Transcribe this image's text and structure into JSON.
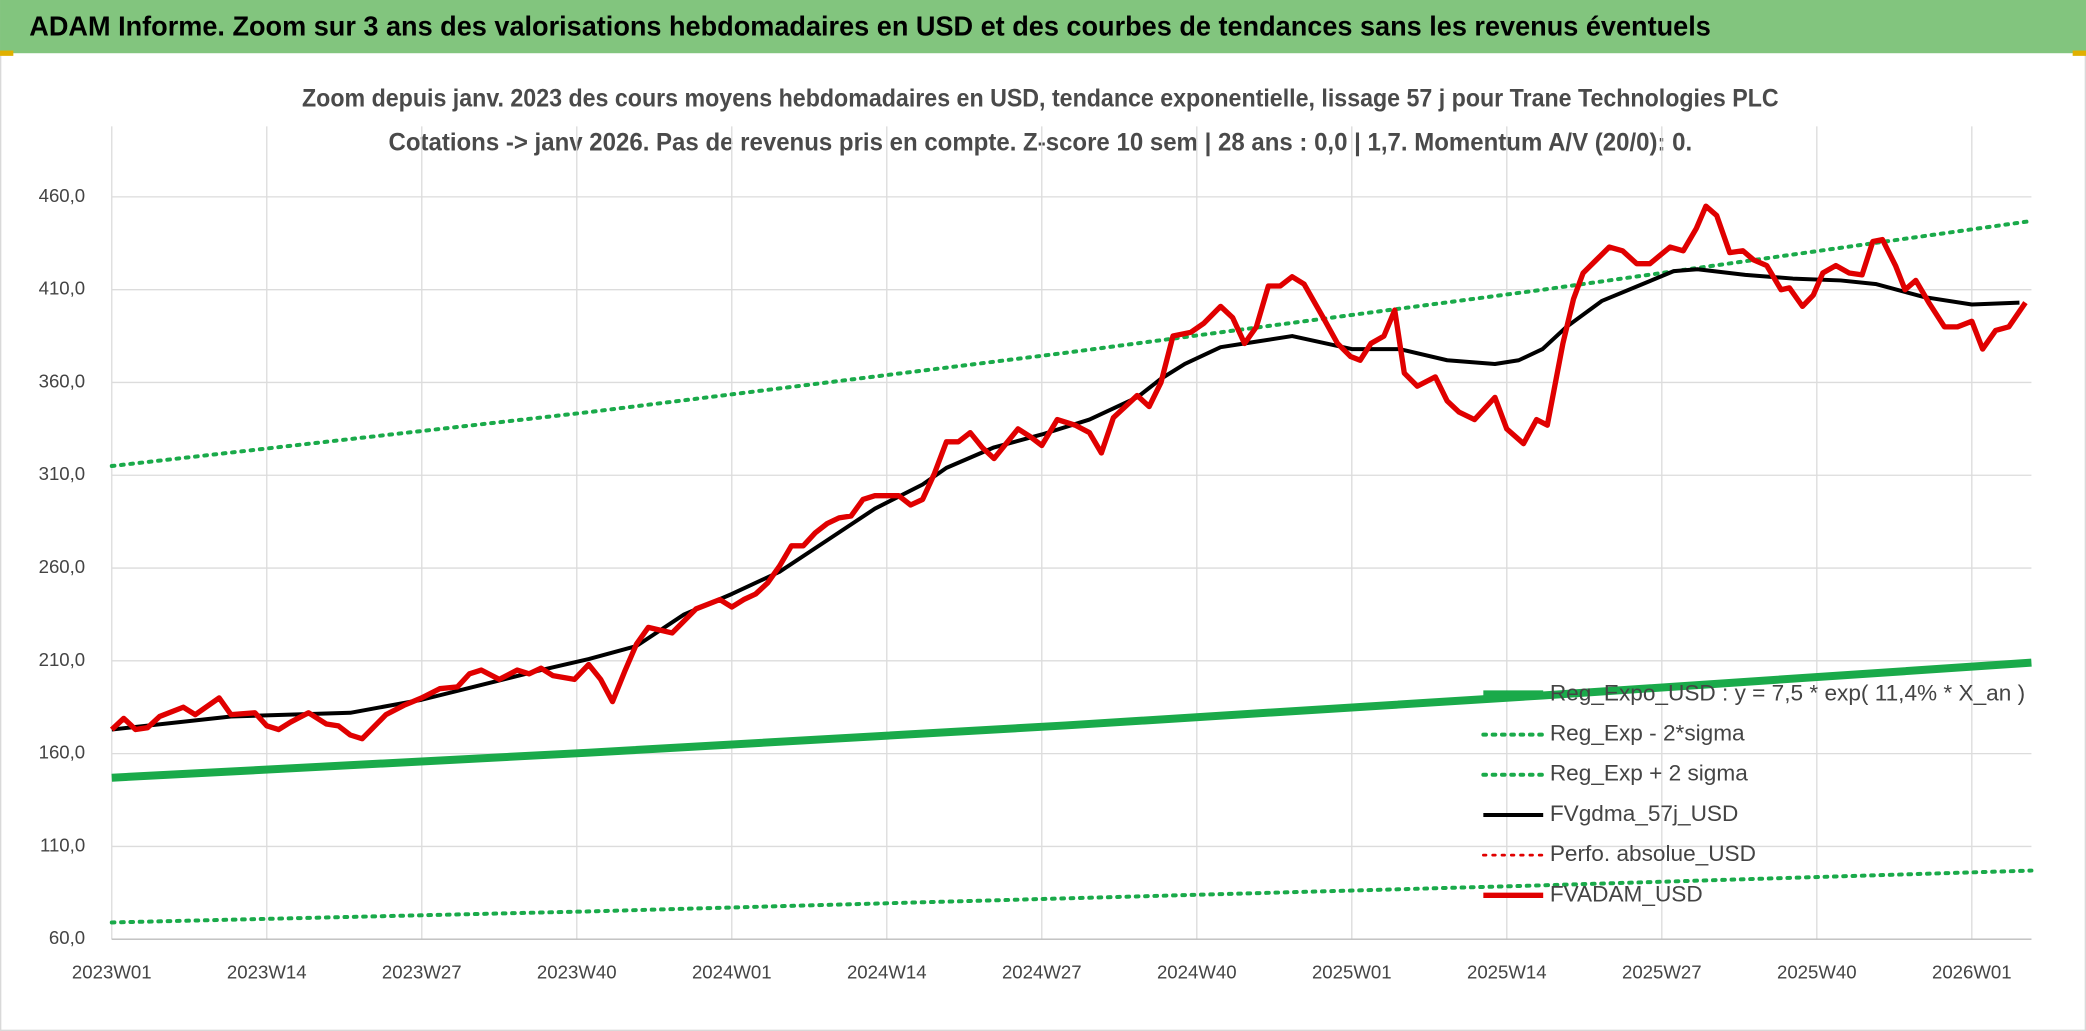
{
  "header": "ADAM Informe. Zoom sur 3 ans des valorisations hebdomadaires en USD et des courbes de tendances sans les revenus éventuels",
  "chart_data": {
    "type": "line",
    "title": "Zoom depuis janv. 2023 des cours moyens hebdomadaires en USD, tendance exponentielle, lissage 57 j pour Trane Technologies PLC",
    "subtitle": "Cotations -> janv 2026. Pas de revenus pris en compte. Z-score 10 sem | 28 ans : 0,0 | 1,7. Momentum A/V (20/0): 0.",
    "xlim": [
      0,
      161
    ],
    "xticks": [
      {
        "value": 0,
        "label": "2023W01"
      },
      {
        "value": 13,
        "label": "2023W14"
      },
      {
        "value": 26,
        "label": "2023W27"
      },
      {
        "value": 39,
        "label": "2023W40"
      },
      {
        "value": 52,
        "label": "2024W01"
      },
      {
        "value": 65,
        "label": "2024W14"
      },
      {
        "value": 78,
        "label": "2024W27"
      },
      {
        "value": 91,
        "label": "2024W40"
      },
      {
        "value": 104,
        "label": "2025W01"
      },
      {
        "value": 117,
        "label": "2025W14"
      },
      {
        "value": 130,
        "label": "2025W27"
      },
      {
        "value": 143,
        "label": "2025W40"
      },
      {
        "value": 156,
        "label": "2026W01"
      }
    ],
    "ylim": [
      60,
      460
    ],
    "yticks": [
      {
        "value": 60,
        "label": "60,0"
      },
      {
        "value": 110,
        "label": "110,0"
      },
      {
        "value": 160,
        "label": "160,0"
      },
      {
        "value": 210,
        "label": "210,0"
      },
      {
        "value": 260,
        "label": "260,0"
      },
      {
        "value": 310,
        "label": "310,0"
      },
      {
        "value": 360,
        "label": "360,0"
      },
      {
        "value": 410,
        "label": "410,0"
      },
      {
        "value": 460,
        "label": "460,0"
      }
    ],
    "grid": true,
    "legend": "lower right",
    "series": [
      {
        "name": "Reg_Expo_USD : y = 7,5 * exp( 11,4% *  X_an )",
        "color": "#1aaa4a",
        "line_style": "solid",
        "line_width": 6,
        "x": [
          0,
          40,
          80,
          120,
          161
        ],
        "values": [
          147,
          160.5,
          175.2,
          191.3,
          209
        ]
      },
      {
        "name": "Reg_Exp - 2*sigma",
        "color": "#1aaa4a",
        "line_style": "dotted",
        "line_width": 3,
        "x": [
          0,
          40,
          80,
          120,
          161
        ],
        "values": [
          69,
          75,
          82,
          89,
          97
        ]
      },
      {
        "name": "Reg_Exp + 2 sigma",
        "color": "#1aaa4a",
        "line_style": "dotted",
        "line_width": 3,
        "x": [
          0,
          40,
          80,
          120,
          161
        ],
        "values": [
          315,
          344,
          376,
          410,
          447
        ]
      },
      {
        "name": "FVgdma_57j_USD",
        "color": "#000000",
        "line_style": "solid",
        "line_width": 3,
        "x": [
          0,
          10,
          20,
          26,
          31,
          36,
          40,
          44,
          48,
          52,
          56,
          60,
          64,
          68,
          70,
          74,
          78,
          82,
          86,
          88,
          90,
          93,
          96,
          99,
          104,
          108,
          112,
          116,
          118,
          120,
          122,
          125,
          128,
          131,
          133,
          137,
          141,
          145,
          148,
          152,
          156,
          160
        ],
        "values": [
          173,
          180,
          182,
          189,
          197,
          205,
          211,
          218,
          235,
          246,
          258,
          275,
          292,
          305,
          314,
          325,
          332,
          340,
          352,
          362,
          370,
          379,
          382,
          385,
          378,
          378,
          372,
          370,
          372,
          378,
          390,
          404,
          412,
          420,
          421,
          418,
          416,
          415,
          413,
          406,
          402,
          403
        ]
      },
      {
        "name": "Perfo. absolue_USD",
        "color": "#e00000",
        "line_style": "dotted",
        "line_width": 2,
        "x": [],
        "values": []
      },
      {
        "name": "FVADAM_USD",
        "color": "#e00000",
        "line_style": "solid",
        "line_width": 4,
        "x": [
          0,
          1,
          2,
          3,
          4,
          6,
          7,
          9,
          10,
          12,
          13,
          14,
          15,
          16.5,
          18,
          19,
          20,
          21,
          23,
          24.5,
          26,
          27.5,
          29,
          30,
          31,
          32.5,
          34,
          35,
          36,
          37,
          38.8,
          40,
          41,
          42,
          43,
          44,
          45,
          47,
          49,
          51,
          52,
          53,
          54,
          55,
          56,
          57,
          58,
          59,
          60,
          61,
          62,
          63,
          64,
          66,
          67,
          68,
          69,
          70,
          71,
          72,
          73,
          74,
          76,
          77,
          78,
          79.3,
          80.8,
          82,
          83,
          84,
          86,
          87,
          88,
          89,
          90.5,
          91.6,
          93,
          94,
          95,
          96,
          97,
          98,
          99,
          100,
          101.6,
          102.8,
          103.9,
          104.7,
          105.6,
          106.7,
          107.6,
          108.4,
          109.5,
          111,
          112,
          113,
          114.3,
          116,
          117,
          118.4,
          119.5,
          120.4,
          121.7,
          122.6,
          123.4,
          124.5,
          125.6,
          126.7,
          127.9,
          129,
          130.7,
          131.8,
          132.9,
          133.7,
          134.6,
          135.7,
          136.8,
          137.7,
          138.8,
          140,
          140.7,
          141.8,
          142.7,
          143.5,
          144.6,
          145.7,
          146.8,
          147.7,
          148.5,
          149.6,
          150.4,
          151.3,
          152.4,
          153.7,
          154.8,
          156,
          156.9,
          158,
          159.1,
          160.5
        ],
        "values": [
          173,
          179,
          173,
          174,
          180,
          185,
          181,
          190,
          181,
          182,
          175,
          173,
          177,
          182,
          176,
          175,
          170,
          168,
          181,
          186,
          190,
          195,
          196,
          203,
          205,
          200,
          205,
          203,
          206,
          202,
          200,
          208,
          200,
          188,
          204,
          219,
          228,
          225,
          238,
          243,
          239,
          243,
          246,
          252,
          261,
          272,
          272,
          279,
          284,
          287,
          288,
          297,
          299,
          299,
          294,
          297,
          311,
          328,
          328,
          333,
          325,
          319,
          335,
          331,
          326,
          340,
          337,
          333,
          322,
          341,
          353,
          347,
          360,
          385,
          387,
          392,
          401,
          395,
          381,
          390,
          412,
          412,
          417,
          413,
          395,
          381,
          374,
          372,
          381,
          385,
          399,
          365,
          358,
          363,
          350,
          344,
          340,
          352,
          335,
          327,
          340,
          337,
          381,
          405,
          419,
          426,
          433,
          431,
          424,
          424,
          433,
          431,
          443,
          455,
          450,
          430,
          431,
          426,
          423,
          410,
          411,
          401,
          407,
          419,
          423,
          419,
          418,
          436,
          437,
          423,
          410,
          415,
          403,
          390,
          390,
          393,
          378,
          388,
          390,
          403
        ]
      }
    ]
  }
}
